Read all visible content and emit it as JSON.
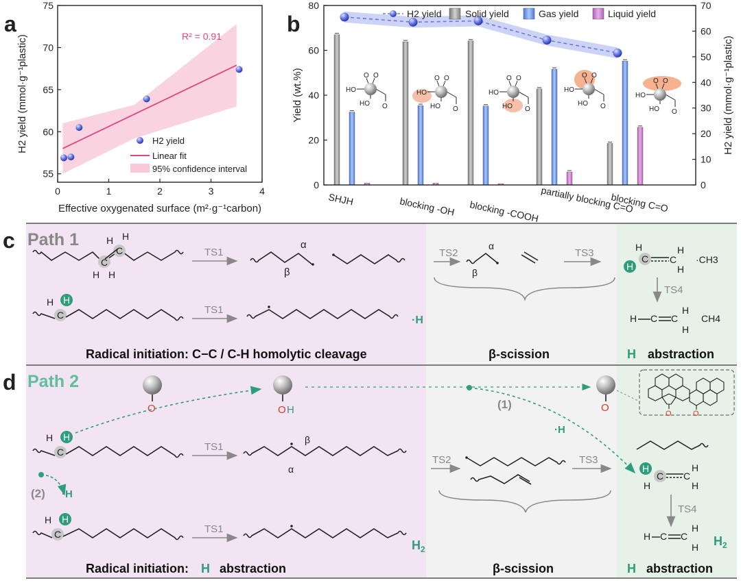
{
  "panel_labels": {
    "a": "a",
    "b": "b",
    "c": "c",
    "d": "d"
  },
  "colors": {
    "path1_bg": "#f3e4f3",
    "mid_bg": "#f2f2f2",
    "right_bg": "#e6f1e8",
    "teal": "#2e9d7c",
    "pink": "#e1447e",
    "red": "#e0342f",
    "blue": "#5567e0"
  },
  "chart_data": [
    {
      "type": "scatter",
      "id": "a",
      "xlabel": "Effective oxygenated surface (m²·g⁻¹carbon)",
      "ylabel": "H2 yield (mmol·g⁻¹plastic)",
      "xlim": [
        0,
        4
      ],
      "ylim": [
        54,
        75
      ],
      "xticks": [
        "0",
        "1",
        "2",
        "3",
        "4"
      ],
      "yticks": [
        "55",
        "60",
        "65",
        "70",
        "75"
      ],
      "points": [
        {
          "x": 0.12,
          "y": 56.9
        },
        {
          "x": 0.26,
          "y": 57.0
        },
        {
          "x": 0.42,
          "y": 60.5
        },
        {
          "x": 1.74,
          "y": 63.9
        },
        {
          "x": 3.55,
          "y": 67.4
        }
      ],
      "fit": {
        "x0": 0.1,
        "y0": 58.0,
        "x1": 3.5,
        "y1": 67.9
      },
      "ci_upper": [
        [
          0.1,
          61.0
        ],
        [
          1.5,
          63.2
        ],
        [
          3.5,
          72.8
        ]
      ],
      "ci_lower": [
        [
          0.1,
          55.0
        ],
        [
          1.5,
          59.2
        ],
        [
          3.5,
          63.0
        ]
      ],
      "annotation": "R² = 0.91",
      "legend": [
        "H2 yield",
        "Linear fit",
        "95% confidence interval"
      ]
    },
    {
      "type": "bar",
      "id": "b",
      "ylabel_left": "Yield (wt.%)",
      "ylabel_right": "H2 yield (mmol·g⁻¹plastic)",
      "ylim_left": [
        0,
        80
      ],
      "ylim_right": [
        0,
        70
      ],
      "yticks_left": [
        "0",
        "20",
        "40",
        "60",
        "80"
      ],
      "yticks_right": [
        "0",
        "10",
        "20",
        "30",
        "40",
        "50",
        "60",
        "70"
      ],
      "categories": [
        "SHJH",
        "blocking -OH",
        "blocking -COOH",
        "partially blocking C=O",
        "blocking C=O"
      ],
      "series": [
        {
          "name": "Solid yield",
          "values": [
            67,
            63.8,
            64.2,
            42.8,
            18.5
          ]
        },
        {
          "name": "Gas yield",
          "values": [
            32.5,
            35.4,
            35.2,
            51.6,
            55.2
          ]
        },
        {
          "name": "Liquid yield",
          "values": [
            0.8,
            0.8,
            0.6,
            5.8,
            25.7
          ]
        }
      ],
      "h2_yield": [
        65.5,
        63.5,
        64.0,
        56.5,
        51.5
      ],
      "legend": [
        "H2 yield",
        "Solid yield",
        "Gas yield",
        "Liquid yield"
      ]
    }
  ],
  "panel_c": {
    "path_title": "Path 1",
    "ts1": "TS1",
    "ts2": "TS2",
    "ts3": "TS3",
    "ts4": "TS4",
    "alpha": "α",
    "beta": "β",
    "ch3": "·CH3",
    "ch4": "CH4",
    "h_radical": "·H",
    "section1": "Radical initiation: C−C / C-H homolytic cleavage",
    "section2": "β-scission",
    "section3_h": "H",
    "section3": "abstraction"
  },
  "panel_d": {
    "path_title": "Path 2",
    "ts1": "TS1",
    "ts2": "TS2",
    "ts3": "TS3",
    "ts4": "TS4",
    "alpha": "α",
    "beta": "β",
    "label1": "(1)",
    "label2": "(2)",
    "h_radical": "·H",
    "h2": "H2",
    "o": "O",
    "oh_o": "O",
    "oh_h": "H",
    "section1": "Radical initiation:",
    "section1_h": "H",
    "section1_end": "abstraction",
    "section2": "β-scission",
    "section3_h": "H",
    "section3": "abstraction"
  }
}
